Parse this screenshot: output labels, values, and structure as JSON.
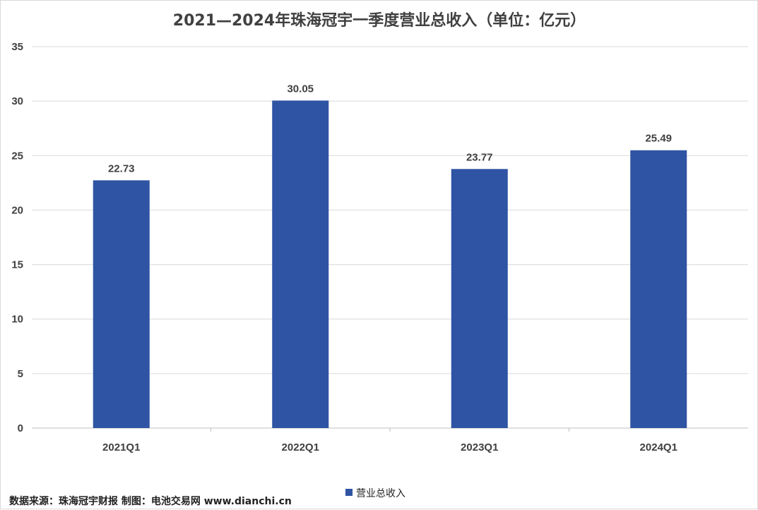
{
  "chart_data": {
    "type": "bar",
    "title": "2021—2024年珠海冠宇一季度营业总收入（单位：亿元）",
    "categories": [
      "2021Q1",
      "2022Q1",
      "2023Q1",
      "2024Q1"
    ],
    "series": [
      {
        "name": "营业总收入",
        "values": [
          22.73,
          30.05,
          23.77,
          25.49
        ],
        "color": "#2e54a3"
      }
    ],
    "data_labels": [
      "22.73",
      "30.05",
      "23.77",
      "25.49"
    ],
    "ylim": [
      0,
      35
    ],
    "yticks": [
      0,
      5,
      10,
      15,
      20,
      25,
      30,
      35
    ],
    "grid": true,
    "legend_position": "bottom"
  },
  "source_note": "数据来源：珠海冠宇财报 制图：电池交易网 www.dianchi.cn",
  "colors": {
    "bar": "#2e54a3",
    "grid": "#d9d9d9",
    "text": "#404040"
  }
}
